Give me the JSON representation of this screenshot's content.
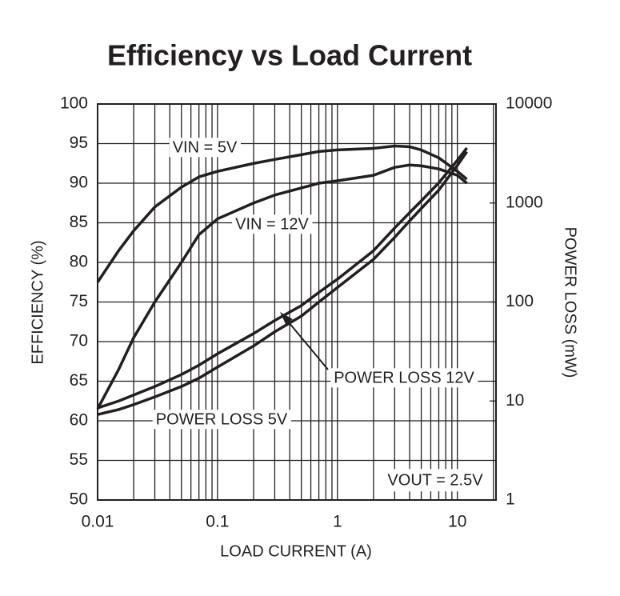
{
  "chart_data": {
    "type": "line",
    "title": "Efficiency vs Load Current",
    "xlabel": "LOAD CURRENT (A)",
    "ylabel": "EFFICIENCY (%)",
    "y2label": "POWER LOSS (mW)",
    "xscale": "log",
    "y2scale": "log",
    "grid": true,
    "x": [
      0.01,
      0.015,
      0.02,
      0.03,
      0.05,
      0.07,
      0.1,
      0.2,
      0.3,
      0.5,
      0.7,
      1,
      2,
      3,
      4,
      5,
      7,
      10,
      12
    ],
    "xlim": [
      0.01,
      21
    ],
    "xticks": [
      0.01,
      0.1,
      1,
      10
    ],
    "ylim": [
      50,
      100
    ],
    "yticks": [
      50,
      55,
      60,
      65,
      70,
      75,
      80,
      85,
      90,
      95,
      100
    ],
    "y2lim": [
      1,
      10000
    ],
    "y2ticks": [
      1,
      10,
      100,
      1000,
      10000
    ],
    "series": [
      {
        "name": "VIN = 5V",
        "color": "#231f20",
        "values": [
          77.5,
          81.5,
          84,
          87,
          89.5,
          90.8,
          91.5,
          92.5,
          93,
          93.6,
          94,
          94.2,
          94.4,
          94.7,
          94.6,
          94.2,
          93.2,
          91.5,
          90.5
        ]
      },
      {
        "name": "VIN = 12V",
        "color": "#231f20",
        "values": [
          61.5,
          66.5,
          70.5,
          75,
          80,
          83.5,
          85.5,
          87.5,
          88.5,
          89.4,
          90,
          90.3,
          91,
          92,
          92.3,
          92.2,
          91.8,
          91,
          90
        ]
      },
      {
        "name": "POWER LOSS 12V",
        "color": "#231f20",
        "axis": "y2",
        "values": [
          8.5,
          10,
          11.5,
          14,
          18.5,
          23,
          30,
          48,
          65,
          92,
          125,
          170,
          330,
          560,
          800,
          1050,
          1600,
          2700,
          3600
        ]
      },
      {
        "name": "POWER LOSS 5V",
        "color": "#231f20",
        "axis": "y2",
        "values": [
          7.3,
          8.2,
          9.2,
          11,
          14,
          17,
          22,
          36,
          50,
          72,
          100,
          140,
          270,
          450,
          660,
          880,
          1350,
          2400,
          3300
        ]
      }
    ],
    "annotation": "VOUT = 2.5V"
  }
}
